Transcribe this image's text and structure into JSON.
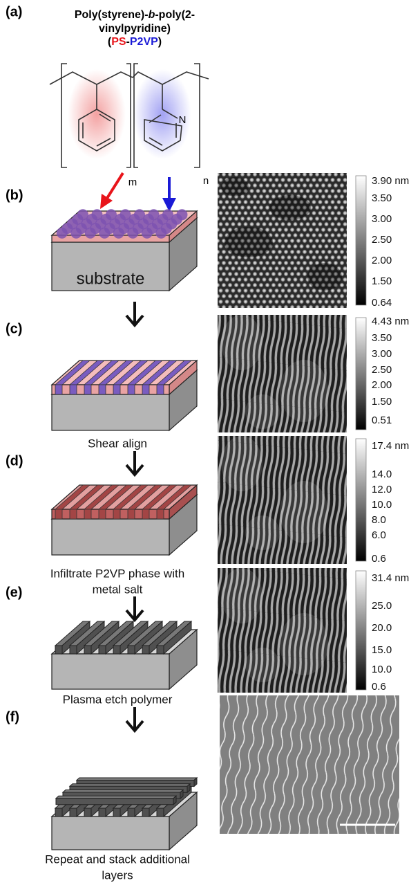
{
  "panels": [
    {
      "label": "(a)",
      "title": [
        "Poly(styrene)-",
        "b",
        "-poly(2-",
        "vinylpyridine)"
      ],
      "abbreviation": [
        "(",
        "PS",
        "-",
        "P2VP",
        ")"
      ],
      "atom_label": "N",
      "subscripts": [
        "m",
        "n"
      ]
    },
    {
      "label": "(b)",
      "block_label": "substrate",
      "colorbar": [
        "3.90 nm",
        "3.50",
        "3.00",
        "2.50",
        "2.00",
        "1.50",
        "0.64"
      ]
    },
    {
      "label": "(c)",
      "caption": [
        "Shear align"
      ],
      "colorbar": [
        "4.43 nm",
        "3.50",
        "3.00",
        "2.50",
        "2.00",
        "1.50",
        "0.51"
      ]
    },
    {
      "label": "(d)",
      "caption": [
        "Infiltrate P2VP phase with",
        "metal salt"
      ],
      "colorbar": [
        "17.4 nm",
        "14.0",
        "12.0",
        "10.0",
        "8.0",
        "6.0",
        "0.6"
      ]
    },
    {
      "label": "(e)",
      "caption": [
        "Plasma etch polymer"
      ],
      "colorbar": [
        "31.4 nm",
        "25.0",
        "20.0",
        "15.0",
        "10.0",
        "0.6"
      ]
    },
    {
      "label": "(f)",
      "caption": [
        "Repeat and stack additional",
        "layers"
      ]
    }
  ]
}
